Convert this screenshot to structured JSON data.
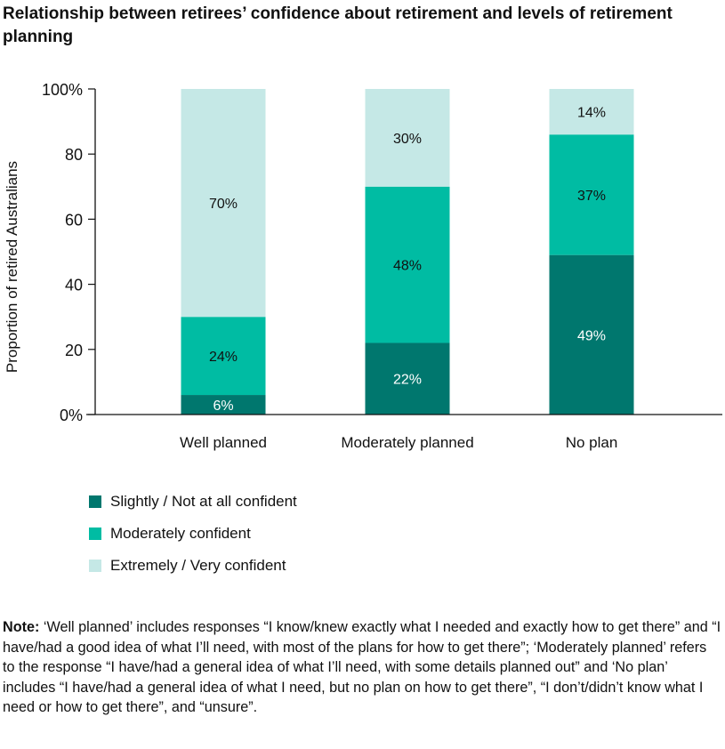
{
  "chart_data": {
    "type": "bar",
    "stacked": true,
    "title": "Relationship between retirees’ confidence about retirement and levels of retirement planning",
    "xlabel": "",
    "ylabel": "Proportion of retired Australians",
    "ylim": [
      0,
      100
    ],
    "yticks": [
      "0%",
      "20",
      "40",
      "60",
      "80",
      "100%"
    ],
    "categories": [
      "Well planned",
      "Moderately planned",
      "No plan"
    ],
    "series": [
      {
        "name": "Slightly / Not at all confident",
        "values": [
          6,
          22,
          49
        ],
        "labels": [
          "6%",
          "22%",
          "49%"
        ],
        "color": "#00776e",
        "text_color": "#ffffff"
      },
      {
        "name": "Moderately confident",
        "values": [
          24,
          48,
          37
        ],
        "labels": [
          "24%",
          "48%",
          "37%"
        ],
        "color": "#00bca3",
        "text_color": "#111111"
      },
      {
        "name": "Extremely / Very confident",
        "values": [
          70,
          30,
          14
        ],
        "labels": [
          "70%",
          "30%",
          "14%"
        ],
        "color": "#c5e8e6",
        "text_color": "#111111"
      }
    ],
    "legend_position": "bottom-left",
    "grid": false
  },
  "note": {
    "label": "Note:",
    "text": " ‘Well planned’ includes responses “I know/knew exactly what I needed and exactly how to get there” and “I have/had a good idea of what I’ll need, with most of the plans for how to get there”; ‘Moderately planned’ refers to the response “I have/had a general idea of what I’ll need, with some details planned out” and ‘No plan’ includes “I have/had a general idea of what I need, but no plan on how to get there”, “I don’t/didn’t know what I need or how to get there”, and “unsure”."
  }
}
